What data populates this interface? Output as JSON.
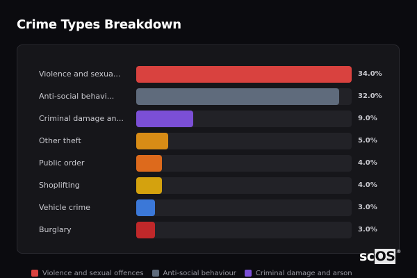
{
  "header": {
    "title": "Crime Types Breakdown"
  },
  "chart_data": {
    "type": "bar",
    "orientation": "horizontal",
    "title": "Crime Types Breakdown",
    "categories": [
      "Violence and sexual offences",
      "Anti-social behaviour",
      "Criminal damage and arson",
      "Other theft",
      "Public order",
      "Shoplifting",
      "Vehicle crime",
      "Burglary"
    ],
    "display_labels": [
      "Violence and sexua...",
      "Anti-social behavi...",
      "Criminal damage an...",
      "Other theft",
      "Public order",
      "Shoplifting",
      "Vehicle crime",
      "Burglary"
    ],
    "values": [
      34.0,
      32.0,
      9.0,
      5.0,
      4.0,
      4.0,
      3.0,
      3.0
    ],
    "value_labels": [
      "34.0%",
      "32.0%",
      "9.0%",
      "5.0%",
      "4.0%",
      "4.0%",
      "3.0%",
      "3.0%"
    ],
    "colors": [
      "#d9423f",
      "#5f6b7c",
      "#7b4fd6",
      "#d88c16",
      "#dd6a1c",
      "#d4a20e",
      "#3b78d8",
      "#c0282a"
    ],
    "xlim": [
      0,
      34
    ],
    "legend_position": "bottom",
    "grid": false
  },
  "rows": [
    {
      "label": "Violence and sexua...",
      "pct": "34.0%",
      "width": "100%",
      "color": "#d9423f"
    },
    {
      "label": "Anti-social behavi...",
      "pct": "32.0%",
      "width": "94.1%",
      "color": "#5f6b7c"
    },
    {
      "label": "Criminal damage an...",
      "pct": "9.0%",
      "width": "26.5%",
      "color": "#7b4fd6"
    },
    {
      "label": "Other theft",
      "pct": "5.0%",
      "width": "14.7%",
      "color": "#d88c16"
    },
    {
      "label": "Public order",
      "pct": "4.0%",
      "width": "11.8%",
      "color": "#dd6a1c"
    },
    {
      "label": "Shoplifting",
      "pct": "4.0%",
      "width": "11.8%",
      "color": "#d4a20e"
    },
    {
      "label": "Vehicle crime",
      "pct": "3.0%",
      "width": "8.8%",
      "color": "#3b78d8"
    },
    {
      "label": "Burglary",
      "pct": "3.0%",
      "width": "8.8%",
      "color": "#c0282a"
    }
  ],
  "legend": [
    {
      "label": "Violence and sexual offences",
      "color": "#d9423f"
    },
    {
      "label": "Anti-social behaviour",
      "color": "#5f6b7c"
    },
    {
      "label": "Criminal damage and arson",
      "color": "#7b4fd6"
    }
  ],
  "logo": {
    "sc": "sc",
    "os": "OS",
    "reg": "®"
  }
}
